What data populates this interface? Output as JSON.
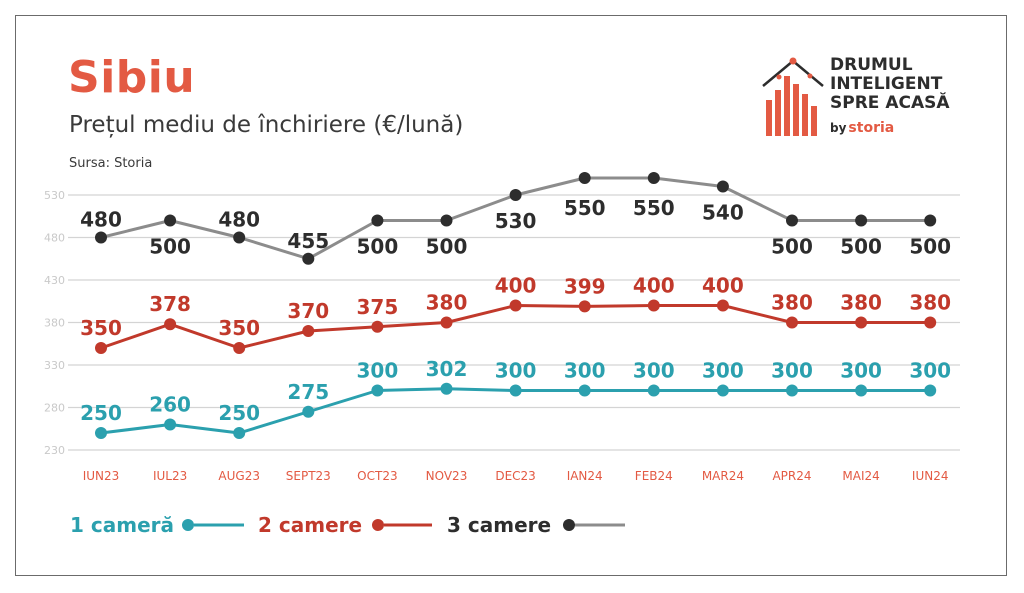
{
  "header": {
    "title": "Sibiu",
    "subtitle": "Prețul mediu de închiriere (€/lună)",
    "source": "Sursa: Storia"
  },
  "logo": {
    "line1": "DRUMUL",
    "line2": "INTELIGENT",
    "line3": "SPRE ACASĂ",
    "by": "by",
    "brand": "storia"
  },
  "colors": {
    "title": "#e35a43",
    "one_room": "#2ba0ae",
    "two_rooms": "#c1392b",
    "three_rooms": "#8c8c8c",
    "three_rooms_labels": "#2d2d2d",
    "tick_labels": "#e35a43"
  },
  "chart_data": {
    "type": "line",
    "categories": [
      "IUN23",
      "IUL23",
      "AUG23",
      "SEPT23",
      "OCT23",
      "NOV23",
      "DEC23",
      "IAN24",
      "FEB24",
      "MAR24",
      "APR24",
      "MAI24",
      "IUN24"
    ],
    "ylim": [
      230,
      530
    ],
    "yticks": [
      230,
      280,
      330,
      380,
      430,
      480,
      530
    ],
    "grid": true,
    "legend_position": "bottom",
    "series": [
      {
        "name": "1 cameră",
        "key": "one_room",
        "values": [
          250,
          260,
          250,
          275,
          300,
          302,
          300,
          300,
          300,
          300,
          300,
          300,
          300
        ],
        "labels": [
          "250",
          "260",
          "250",
          "275",
          "300",
          "302",
          "300",
          "300",
          "300",
          "300",
          "300",
          "300",
          "300"
        ]
      },
      {
        "name": "2 camere",
        "key": "two_rooms",
        "values": [
          350,
          378,
          350,
          370,
          375,
          380,
          400,
          399,
          400,
          400,
          380,
          380,
          380
        ],
        "labels": [
          "350",
          "378",
          "350",
          "370",
          "375",
          "380",
          "400",
          "399",
          "400",
          "400",
          "380",
          "380",
          "380"
        ]
      },
      {
        "name": "3 camere",
        "key": "three_rooms",
        "values": [
          480,
          500,
          480,
          455,
          500,
          500,
          530,
          550,
          550,
          540,
          500,
          500,
          500
        ],
        "labels": [
          "480",
          "500",
          "480",
          "455",
          "500",
          "500",
          "530",
          "550",
          "550",
          "540",
          "500",
          "500",
          "500"
        ]
      }
    ]
  }
}
